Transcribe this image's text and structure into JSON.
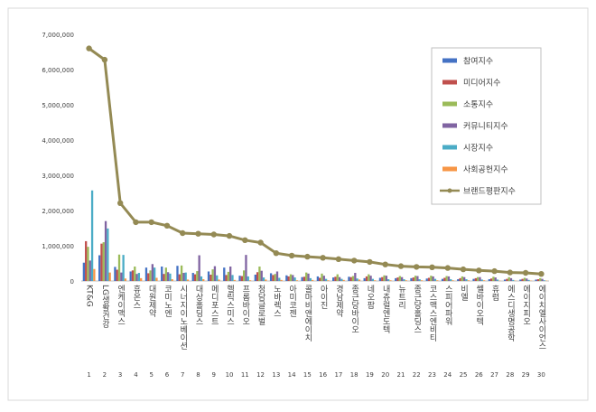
{
  "chart_data": {
    "type": "bar",
    "title": "",
    "xlabel": "",
    "ylabel": "",
    "ylim": [
      0,
      7000000
    ],
    "yticks": [
      "0",
      "1,000,000",
      "2,000,000",
      "3,000,000",
      "4,000,000",
      "5,000,000",
      "6,000,000",
      "7,000,000"
    ],
    "grid": false,
    "legend_position": "top-right",
    "categories": [
      "KT&G",
      "LG생활건강",
      "엔케이맥스",
      "휴온스",
      "대원제약",
      "코미노엔",
      "시너지이노베이션",
      "대상홀딩스",
      "메디포스트",
      "헬릭스미스",
      "프롬바이오",
      "청담글로벌",
      "노바렉스",
      "아미코젠",
      "콜마비앤에이치",
      "아이진",
      "경남제약",
      "종근당바이오",
      "네오팜",
      "내츄럴엔도텍",
      "뉴트리",
      "종근당홀딩스",
      "코스맥스엔비티",
      "스피어파워",
      "비엘",
      "쎌바이오텍",
      "휴럼",
      "에스디생명공학",
      "에이지피오",
      "에이치엘사이언스"
    ],
    "ranks": [
      "1",
      "2",
      "3",
      "4",
      "5",
      "6",
      "7",
      "8",
      "9",
      "10",
      "11",
      "12",
      "13",
      "14",
      "15",
      "16",
      "17",
      "18",
      "19",
      "20",
      "21",
      "22",
      "23",
      "24",
      "25",
      "26",
      "27",
      "28",
      "29",
      "30"
    ],
    "series": [
      {
        "name": "참여지수",
        "color": "#4472c4",
        "values": [
          520000,
          730000,
          400000,
          270000,
          380000,
          410000,
          430000,
          230000,
          270000,
          380000,
          150000,
          180000,
          220000,
          160000,
          110000,
          130000,
          100000,
          120000,
          80000,
          90000,
          80000,
          80000,
          70000,
          60000,
          50000,
          60000,
          50000,
          40000,
          40000,
          40000
        ]
      },
      {
        "name": "미디어지수",
        "color": "#c0504d",
        "values": [
          1130000,
          1060000,
          320000,
          300000,
          220000,
          200000,
          190000,
          190000,
          180000,
          170000,
          140000,
          250000,
          170000,
          130000,
          120000,
          90000,
          120000,
          110000,
          130000,
          110000,
          100000,
          100000,
          90000,
          90000,
          80000,
          80000,
          70000,
          60000,
          60000,
          50000
        ]
      },
      {
        "name": "소통지수",
        "color": "#9bbb59",
        "values": [
          970000,
          1100000,
          750000,
          410000,
          300000,
          380000,
          440000,
          280000,
          330000,
          260000,
          300000,
          410000,
          200000,
          190000,
          240000,
          210000,
          190000,
          140000,
          190000,
          160000,
          140000,
          150000,
          150000,
          140000,
          130000,
          110000,
          120000,
          110000,
          90000,
          80000
        ]
      },
      {
        "name": "커뮤니티지수",
        "color": "#8064a2",
        "values": [
          580000,
          1700000,
          240000,
          200000,
          480000,
          250000,
          230000,
          730000,
          420000,
          410000,
          740000,
          290000,
          270000,
          170000,
          210000,
          150000,
          110000,
          230000,
          150000,
          150000,
          110000,
          140000,
          130000,
          130000,
          110000,
          110000,
          100000,
          80000,
          70000,
          60000
        ]
      },
      {
        "name": "시장지수",
        "color": "#4bacc6",
        "values": [
          2570000,
          1490000,
          740000,
          230000,
          380000,
          210000,
          240000,
          130000,
          160000,
          170000,
          130000,
          100000,
          90000,
          100000,
          80000,
          60000,
          60000,
          70000,
          60000,
          50000,
          50000,
          50000,
          60000,
          50000,
          50000,
          40000,
          40000,
          30000,
          30000,
          20000
        ]
      },
      {
        "name": "사회공헌지수",
        "color": "#f79646",
        "values": [
          340000,
          240000,
          70000,
          80000,
          90000,
          50000,
          40000,
          50000,
          40000,
          30000,
          20000,
          40000,
          30000,
          20000,
          30000,
          20000,
          30000,
          40000,
          20000,
          20000,
          20000,
          20000,
          20000,
          20000,
          20000,
          20000,
          10000,
          10000,
          10000,
          10000
        ]
      },
      {
        "name": "브랜드평판지수",
        "color": "#948a54",
        "type": "line",
        "values": [
          6600000,
          6280000,
          2210000,
          1670000,
          1670000,
          1570000,
          1360000,
          1340000,
          1320000,
          1280000,
          1160000,
          1090000,
          790000,
          720000,
          690000,
          660000,
          620000,
          580000,
          540000,
          470000,
          420000,
          400000,
          390000,
          370000,
          330000,
          300000,
          280000,
          240000,
          230000,
          200000
        ]
      }
    ]
  }
}
